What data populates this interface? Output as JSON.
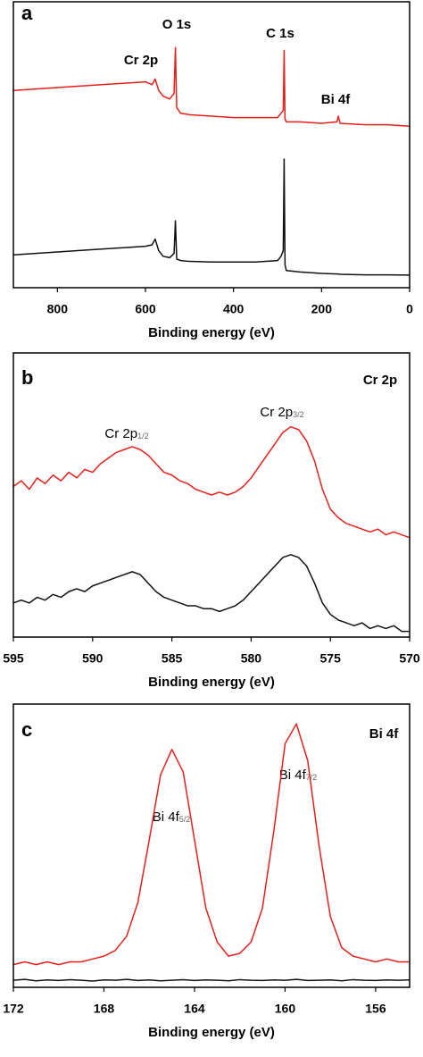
{
  "chart_data": [
    {
      "type": "line",
      "panel_label": "a",
      "x_label": "Binding energy (eV)",
      "annotations": [
        {
          "text": "O 1s"
        },
        {
          "text": "C 1s"
        },
        {
          "text": "Cr 2p"
        },
        {
          "text": "Bi 4f"
        }
      ],
      "xlim": [
        900,
        0
      ],
      "ylim": [
        0,
        100
      ],
      "xticks": [
        800,
        600,
        400,
        200,
        0
      ],
      "x": [
        900,
        850,
        800,
        750,
        700,
        650,
        600,
        585,
        578,
        570,
        560,
        545,
        535,
        532,
        529,
        520,
        500,
        450,
        400,
        350,
        300,
        292,
        287,
        285,
        283,
        280,
        250,
        200,
        165,
        162,
        158,
        100,
        50,
        0
      ],
      "series": [
        {
          "color": "#e8201c",
          "values": [
            69,
            69.5,
            70,
            70.5,
            71,
            71.5,
            72,
            71,
            73,
            69,
            67,
            66,
            68,
            84,
            63,
            61,
            60.5,
            60,
            59.5,
            59.5,
            59.5,
            61,
            62,
            83,
            59,
            58,
            58,
            57.5,
            58,
            60,
            57.5,
            57,
            57,
            56.5
          ]
        },
        {
          "color": "#111111",
          "values": [
            11.5,
            12,
            12.5,
            13,
            13.5,
            14,
            14.5,
            15,
            17,
            13,
            11,
            10.5,
            12,
            23.4,
            10,
            9.5,
            9.2,
            9,
            9,
            9,
            9.5,
            11,
            13,
            45,
            8,
            6,
            5.5,
            5,
            4.8,
            4.8,
            4.7,
            4.5,
            4.5,
            4.4
          ]
        }
      ]
    },
    {
      "type": "line",
      "panel_label": "b",
      "title": "Cr 2p",
      "x_label": "Binding energy (eV)",
      "annotations": [
        {
          "text": "Cr 2p",
          "subscript": "1/2"
        },
        {
          "text": "Cr 2p",
          "subscript": "3/2"
        }
      ],
      "xlim": [
        595,
        570
      ],
      "ylim": [
        0,
        100
      ],
      "xticks": [
        595,
        590,
        585,
        580,
        575,
        570
      ],
      "x": [
        595,
        594.5,
        594,
        593.5,
        593,
        592.5,
        592,
        591.5,
        591,
        590.5,
        590,
        589.5,
        589,
        588.5,
        588,
        587.5,
        587,
        586.5,
        586,
        585.5,
        585,
        584.5,
        584,
        583.5,
        583,
        582.5,
        582,
        581.5,
        581,
        580.5,
        580,
        579.5,
        579,
        578.5,
        578,
        577.5,
        577,
        576.5,
        576,
        575.5,
        575,
        574.5,
        574,
        573.5,
        573,
        572.5,
        572,
        571.5,
        571,
        570.5,
        570
      ],
      "series": [
        {
          "color": "#e8201c",
          "values": [
            53,
            55,
            52,
            56,
            54,
            57,
            55,
            58,
            56,
            59,
            58,
            61,
            63,
            65,
            66,
            67,
            66,
            64,
            61,
            58,
            57,
            55,
            54,
            52,
            51,
            50,
            51,
            50,
            51,
            53,
            56,
            60,
            64,
            68,
            72,
            74,
            73,
            69,
            62,
            52,
            45,
            42,
            40,
            39,
            38,
            37,
            38,
            36,
            37,
            36,
            35
          ]
        },
        {
          "color": "#111111",
          "values": [
            12,
            13,
            12,
            14,
            13,
            15,
            14,
            16,
            17,
            16,
            18,
            19,
            20,
            21,
            22,
            23,
            22,
            19,
            16,
            14,
            13,
            12,
            11,
            11,
            10,
            10,
            9,
            10,
            11,
            13,
            16,
            19,
            22,
            25,
            28,
            29,
            28,
            25,
            19,
            12,
            8,
            6,
            5,
            4,
            5,
            3,
            4,
            3,
            4,
            2,
            2
          ]
        }
      ]
    },
    {
      "type": "line",
      "panel_label": "c",
      "title": "Bi 4f",
      "x_label": "Binding energy (eV)",
      "annotations": [
        {
          "text": "Bi 4f",
          "subscript": "5/2"
        },
        {
          "text": "Bi 4f",
          "subscript": "7/2"
        }
      ],
      "xlim": [
        172,
        154.5
      ],
      "ylim": [
        0,
        100
      ],
      "xticks": [
        172,
        168,
        164,
        160,
        156
      ],
      "x": [
        172,
        171.5,
        171,
        170.5,
        170,
        169.5,
        169,
        168.5,
        168,
        167.5,
        167,
        166.5,
        166,
        165.5,
        165,
        164.5,
        164,
        163.5,
        163,
        162.5,
        162,
        161.5,
        161,
        160.5,
        160,
        159.5,
        159,
        158.5,
        158,
        157.5,
        157,
        156.5,
        156,
        155.5,
        155,
        154.5
      ],
      "series": [
        {
          "color": "#e8201c",
          "values": [
            8,
            9,
            8,
            9,
            8,
            9,
            9,
            10,
            11,
            13,
            18,
            30,
            52,
            75,
            84,
            76,
            52,
            28,
            16,
            11,
            12,
            16,
            28,
            55,
            86,
            93,
            80,
            50,
            25,
            14,
            11,
            10,
            9,
            10,
            9,
            9
          ]
        },
        {
          "color": "#111111",
          "values": [
            2.5,
            2.8,
            2.3,
            2.6,
            2.4,
            2.7,
            2.5,
            2.2,
            2.6,
            2.5,
            2.8,
            2.4,
            2.6,
            2.3,
            2.5,
            2.7,
            2.4,
            2.6,
            2.5,
            2.3,
            2.7,
            2.5,
            2.4,
            2.6,
            2.5,
            2.8,
            2.4,
            2.5,
            2.6,
            2.3,
            2.7,
            2.5,
            2.4,
            2.6,
            2.5,
            2.6
          ]
        }
      ]
    }
  ]
}
